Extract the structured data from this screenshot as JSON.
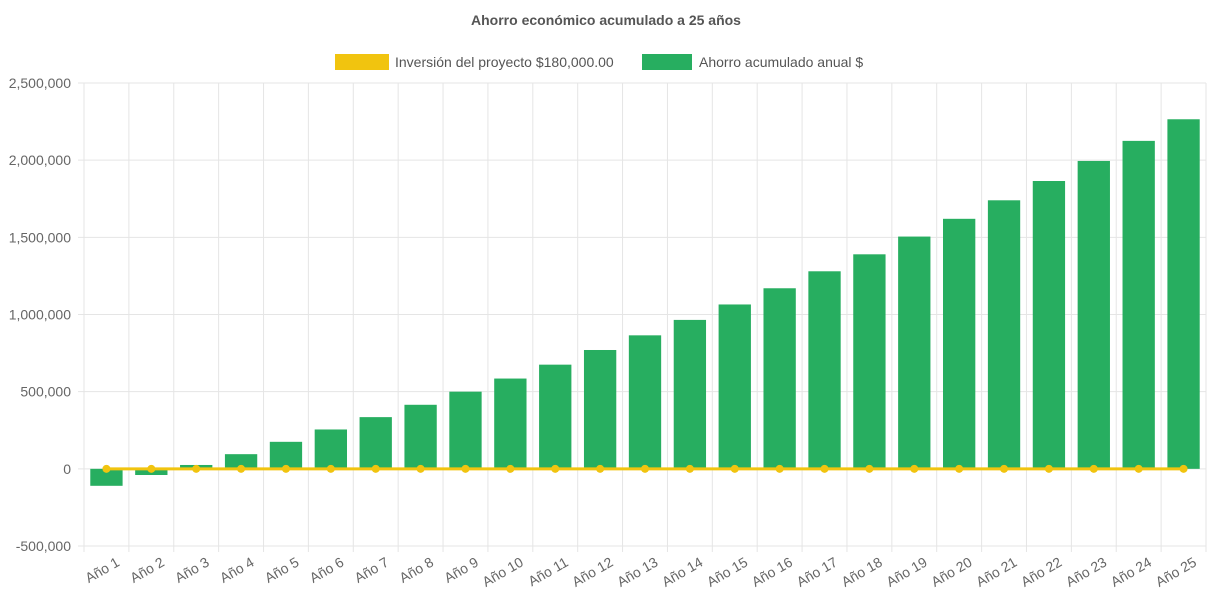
{
  "chart_data": {
    "type": "bar",
    "title": "Ahorro económico acumulado a 25 años",
    "xlabel": "",
    "ylabel": "",
    "categories": [
      "Año 1",
      "Año 2",
      "Año 3",
      "Año 4",
      "Año 5",
      "Año 6",
      "Año 7",
      "Año 8",
      "Año 9",
      "Año 10",
      "Año 11",
      "Año 12",
      "Año 13",
      "Año 14",
      "Año 15",
      "Año 16",
      "Año 17",
      "Año 18",
      "Año 19",
      "Año 20",
      "Año 21",
      "Año 22",
      "Año 23",
      "Año 24",
      "Año 25"
    ],
    "ylim": [
      -500000,
      2500000
    ],
    "yticks": [
      {
        "value": 2500000,
        "label": "2,500,000"
      },
      {
        "value": 2000000,
        "label": "2,000,000"
      },
      {
        "value": 1500000,
        "label": "1,500,000"
      },
      {
        "value": 1000000,
        "label": "1,000,000"
      },
      {
        "value": 500000,
        "label": "500,000"
      },
      {
        "value": 0,
        "label": "0"
      },
      {
        "value": -500000,
        "label": "-500,000"
      }
    ],
    "grid": true,
    "legend_position": "top-center",
    "series": [
      {
        "name": "Inversión del proyecto $180,000.00",
        "type": "line",
        "color": "#f1c40f",
        "values": [
          0,
          0,
          0,
          0,
          0,
          0,
          0,
          0,
          0,
          0,
          0,
          0,
          0,
          0,
          0,
          0,
          0,
          0,
          0,
          0,
          0,
          0,
          0,
          0,
          0
        ]
      },
      {
        "name": "Ahorro acumulado anual $",
        "type": "bar",
        "color": "#27ae60",
        "values": [
          -110000,
          -40000,
          25000,
          95000,
          175000,
          255000,
          335000,
          415000,
          500000,
          585000,
          675000,
          770000,
          865000,
          965000,
          1065000,
          1170000,
          1280000,
          1390000,
          1505000,
          1620000,
          1740000,
          1865000,
          1995000,
          2125000,
          2265000
        ]
      }
    ]
  }
}
